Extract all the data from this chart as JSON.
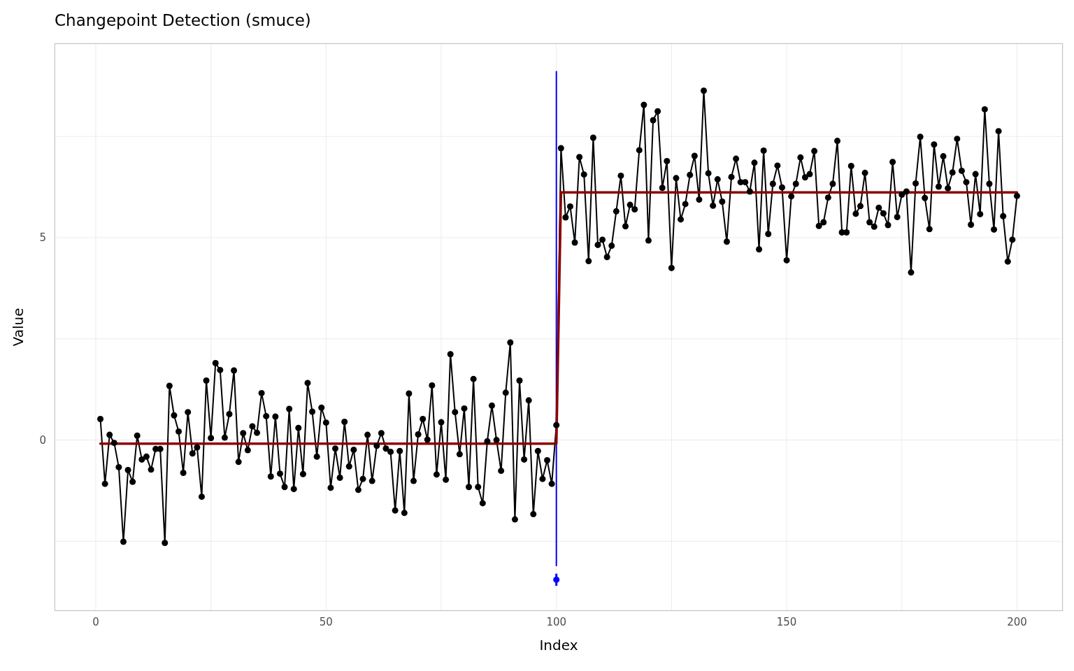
{
  "chart_data": {
    "type": "line",
    "title": "Changepoint Detection (smuce)",
    "xlabel": "Index",
    "ylabel": "Value",
    "xlim": [
      -8.95,
      209.95
    ],
    "xticks": [
      0,
      {
        "value": 25,
        "label": null
      },
      50,
      {
        "value": 75,
        "label": null
      },
      100,
      {
        "value": 125,
        "label": null
      },
      150,
      {
        "value": 175,
        "label": null
      },
      200
    ],
    "ylim": [
      -4.22,
      9.8
    ],
    "yticks": [
      {
        "value": -2.5,
        "label": null
      },
      0,
      {
        "value": 2.5,
        "label": null
      },
      5,
      {
        "value": 7.5,
        "label": null
      }
    ],
    "grid": true,
    "line_style": "solid",
    "series": [
      {
        "type": "line",
        "color": "#0000ff",
        "marker": "none",
        "x": [
          100,
          100
        ],
        "values": [
          -3.1,
          9.1
        ]
      },
      {
        "type": "scatter",
        "color": "#0000ff",
        "marker": "circle",
        "x": [
          100
        ],
        "values": [
          -3.45
        ],
        "errors": [
          [
            -3.6,
            -3.3
          ]
        ]
      },
      {
        "color": "#000000",
        "marker": "circle",
        "x": [
          1,
          2,
          3,
          4,
          5,
          6,
          7,
          8,
          9,
          10,
          11,
          12,
          13,
          14,
          15,
          16,
          17,
          18,
          19,
          20,
          21,
          22,
          23,
          24,
          25,
          26,
          27,
          28,
          29,
          30,
          31,
          32,
          33,
          34,
          35,
          36,
          37,
          38,
          39,
          40,
          41,
          42,
          43,
          44,
          45,
          46,
          47,
          48,
          49,
          50,
          51,
          52,
          53,
          54,
          55,
          56,
          57,
          58,
          59,
          60,
          61,
          62,
          63,
          64,
          65,
          66,
          67,
          68,
          69,
          70,
          71,
          72,
          73,
          74,
          75,
          76,
          77,
          78,
          79,
          80,
          81,
          82,
          83,
          84,
          85,
          86,
          87,
          88,
          89,
          90,
          91,
          92,
          93,
          94,
          95,
          96,
          97,
          98,
          99,
          100,
          101,
          102,
          103,
          104,
          105,
          106,
          107,
          108,
          109,
          110,
          111,
          112,
          113,
          114,
          115,
          116,
          117,
          118,
          119,
          120,
          121,
          122,
          123,
          124,
          125,
          126,
          127,
          128,
          129,
          130,
          131,
          132,
          133,
          134,
          135,
          136,
          137,
          138,
          139,
          140,
          141,
          142,
          143,
          144,
          145,
          146,
          147,
          148,
          149,
          150,
          151,
          152,
          153,
          154,
          155,
          156,
          157,
          158,
          159,
          160,
          161,
          162,
          163,
          164,
          165,
          166,
          167,
          168,
          169,
          170,
          171,
          172,
          173,
          174,
          175,
          176,
          177,
          178,
          179,
          180,
          181,
          182,
          183,
          184,
          185,
          186,
          187,
          188,
          189,
          190,
          191,
          192,
          193,
          194,
          195,
          196,
          197,
          198,
          199,
          200
        ],
        "values": [
          0.52,
          -1.08,
          0.13,
          -0.07,
          -0.67,
          -2.51,
          -0.74,
          -1.03,
          0.11,
          -0.48,
          -0.41,
          -0.73,
          -0.22,
          -0.22,
          -2.54,
          1.34,
          0.61,
          0.21,
          -0.81,
          0.69,
          -0.33,
          -0.18,
          -1.4,
          1.47,
          0.05,
          1.9,
          1.73,
          0.06,
          0.64,
          1.72,
          -0.54,
          0.17,
          -0.25,
          0.34,
          0.18,
          1.16,
          0.59,
          -0.9,
          0.58,
          -0.83,
          -1.16,
          0.77,
          -1.21,
          0.3,
          -0.84,
          1.41,
          0.7,
          -0.41,
          0.8,
          0.43,
          -1.18,
          -0.21,
          -0.93,
          0.45,
          -0.65,
          -0.24,
          -1.23,
          -0.96,
          0.13,
          -1.01,
          -0.14,
          0.17,
          -0.21,
          -0.29,
          -1.74,
          -0.27,
          -1.8,
          1.15,
          -1.01,
          0.14,
          0.52,
          0.01,
          1.35,
          -0.85,
          0.44,
          -0.98,
          2.12,
          0.69,
          -0.35,
          0.78,
          -1.16,
          1.51,
          -1.16,
          -1.56,
          -0.03,
          0.85,
          0.0,
          -0.76,
          1.17,
          2.41,
          -1.96,
          1.47,
          -0.48,
          0.98,
          -1.83,
          -0.27,
          -0.96,
          -0.5,
          -1.08,
          0.37,
          7.21,
          5.5,
          5.77,
          4.88,
          6.99,
          6.56,
          4.42,
          7.47,
          4.82,
          4.95,
          4.52,
          4.8,
          5.65,
          6.53,
          5.28,
          5.81,
          5.7,
          7.16,
          8.28,
          4.93,
          7.9,
          8.12,
          6.23,
          6.89,
          4.25,
          6.47,
          5.45,
          5.83,
          6.55,
          7.02,
          5.94,
          8.63,
          6.59,
          5.79,
          6.44,
          5.89,
          4.9,
          6.5,
          6.95,
          6.37,
          6.37,
          6.14,
          6.85,
          4.71,
          7.15,
          5.09,
          6.33,
          6.78,
          6.24,
          4.44,
          6.02,
          6.33,
          6.98,
          6.49,
          6.57,
          7.14,
          5.29,
          5.38,
          5.99,
          6.33,
          7.39,
          5.13,
          5.13,
          6.77,
          5.59,
          5.78,
          6.6,
          5.38,
          5.27,
          5.74,
          5.6,
          5.31,
          6.87,
          5.51,
          6.06,
          6.14,
          4.14,
          6.34,
          7.49,
          5.98,
          5.21,
          7.3,
          6.26,
          7.01,
          6.22,
          6.61,
          7.44,
          6.65,
          6.37,
          5.32,
          6.57,
          5.58,
          8.17,
          6.33,
          5.2,
          7.63,
          5.53,
          4.41,
          4.95,
          6.03
        ]
      },
      {
        "type": "line",
        "color": "#8b0000",
        "marker": "none",
        "x": [
          1,
          100,
          101,
          200
        ],
        "values": [
          -0.09,
          -0.09,
          6.12,
          6.12
        ]
      }
    ]
  }
}
